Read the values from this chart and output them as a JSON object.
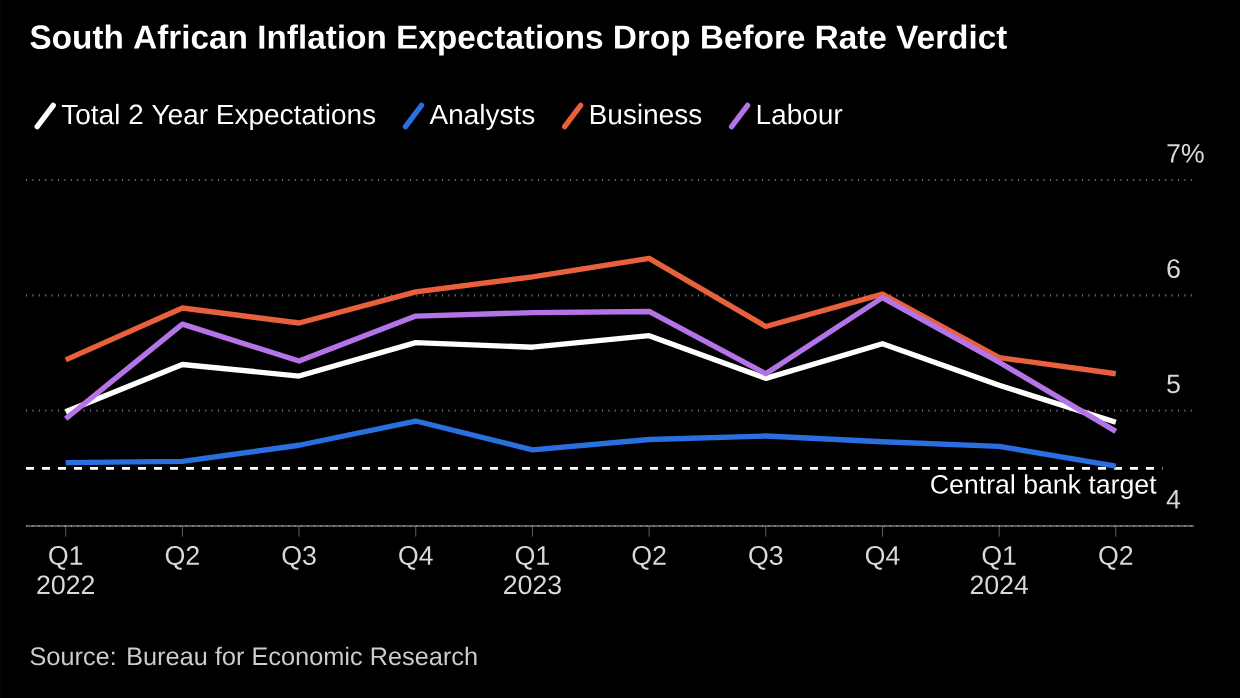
{
  "chart_data": {
    "type": "line",
    "title": "South African Inflation Expectations Drop Before Rate Verdict",
    "categories": [
      "Q1 2022",
      "Q2",
      "Q3",
      "Q4",
      "Q1 2023",
      "Q2",
      "Q3",
      "Q4",
      "Q1 2024",
      "Q2"
    ],
    "series": [
      {
        "name": "Total 2 Year Expectations",
        "color": "#ffffff",
        "values": [
          4.99,
          5.4,
          5.3,
          5.59,
          5.55,
          5.65,
          5.28,
          5.58,
          5.22,
          4.9
        ]
      },
      {
        "name": "Analysts",
        "color": "#2a6fe0",
        "values": [
          4.55,
          4.56,
          4.7,
          4.91,
          4.66,
          4.75,
          4.78,
          4.73,
          4.69,
          4.52
        ]
      },
      {
        "name": "Business",
        "color": "#e8603c",
        "values": [
          5.44,
          5.89,
          5.76,
          6.03,
          6.16,
          6.32,
          5.73,
          6.01,
          5.46,
          5.32
        ]
      },
      {
        "name": "Labour",
        "color": "#b474e8",
        "values": [
          4.93,
          5.75,
          5.43,
          5.82,
          5.85,
          5.86,
          5.32,
          5.98,
          5.42,
          4.82
        ]
      }
    ],
    "ylim": [
      4,
      7
    ],
    "yticks": [
      4,
      5,
      6,
      {
        "value": 7,
        "label": "7%"
      }
    ],
    "ref_lines": [
      {
        "axis": "y",
        "value": 4.5,
        "label": "Central bank target",
        "color": "#ffffff",
        "line_style": "dashed"
      }
    ],
    "grid": "y",
    "legend": "top left",
    "marker": "none",
    "line_style": "solid",
    "annotations": [
      "Source: Bureau for Economic Research"
    ]
  }
}
